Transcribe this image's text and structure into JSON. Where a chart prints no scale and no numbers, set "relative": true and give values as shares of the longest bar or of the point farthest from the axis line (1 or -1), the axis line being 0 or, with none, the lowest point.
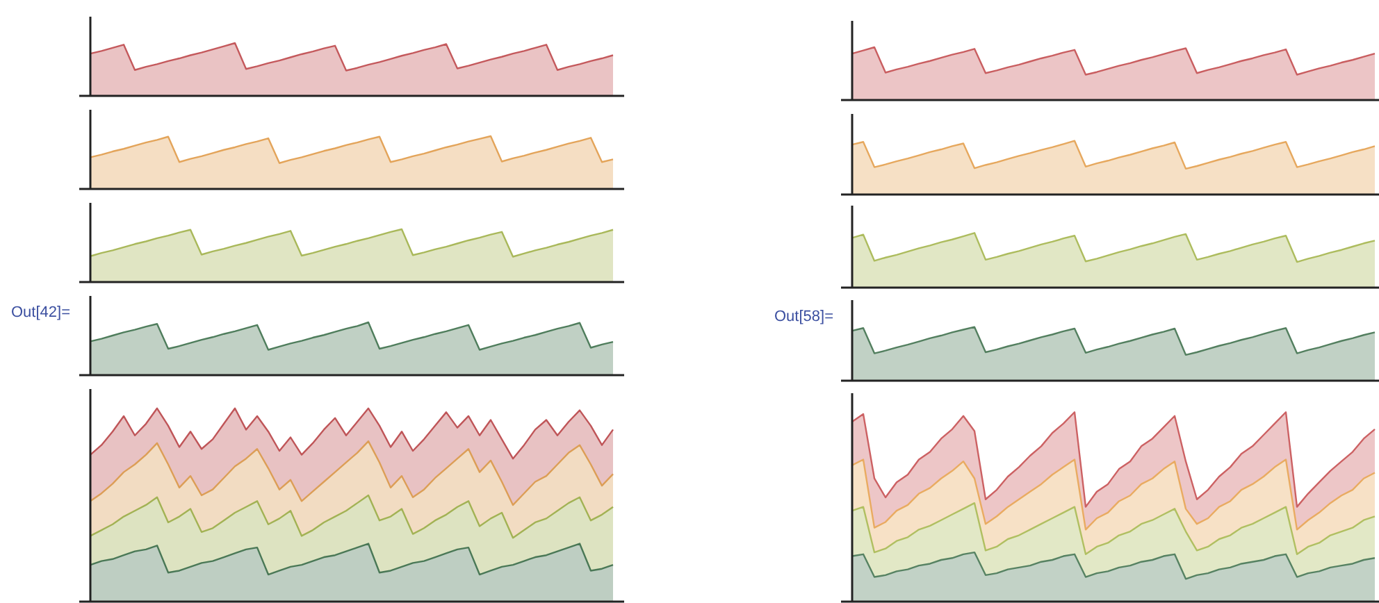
{
  "chart_data": [
    {
      "type": "area",
      "relative": true,
      "categories": [
        null,
        null,
        null,
        null,
        null,
        null,
        null,
        null,
        null,
        null,
        null,
        null,
        null,
        null,
        null,
        null,
        null,
        null,
        null,
        null,
        null,
        null,
        null,
        null,
        null,
        null,
        null,
        null,
        null,
        null,
        null,
        null,
        null,
        null,
        null,
        null,
        null,
        null,
        null,
        null,
        null,
        null,
        null,
        null,
        null,
        null,
        null,
        null
      ],
      "series": [
        {
          "color": "#c4595c",
          "values": [
            0.8,
            0.85,
            0.91,
            0.97,
            0.49,
            0.55,
            0.6,
            0.66,
            0.71,
            0.77,
            0.82,
            0.88,
            0.94,
            1.0,
            0.51,
            0.56,
            0.62,
            0.67,
            0.73,
            0.79,
            0.84,
            0.9,
            0.95,
            0.48,
            0.53,
            0.59,
            0.64,
            0.7,
            0.76,
            0.81,
            0.87,
            0.92,
            0.98,
            0.52,
            0.57,
            0.63,
            0.69,
            0.74,
            0.8,
            0.85,
            0.91,
            0.97,
            0.49,
            0.55,
            0.6,
            0.66,
            0.71,
            0.77
          ]
        }
      ]
    },
    {
      "type": "area",
      "relative": true,
      "categories": [
        null,
        null,
        null,
        null,
        null,
        null,
        null,
        null,
        null,
        null,
        null,
        null,
        null,
        null,
        null,
        null,
        null,
        null,
        null,
        null,
        null,
        null,
        null,
        null,
        null,
        null,
        null,
        null,
        null,
        null,
        null,
        null,
        null,
        null,
        null,
        null,
        null,
        null,
        null,
        null,
        null,
        null,
        null,
        null,
        null,
        null,
        null,
        null
      ],
      "series": [
        {
          "color": "#e3a45a",
          "values": [
            0.6,
            0.65,
            0.71,
            0.76,
            0.82,
            0.88,
            0.93,
            0.99,
            0.51,
            0.57,
            0.62,
            0.68,
            0.74,
            0.79,
            0.85,
            0.9,
            0.96,
            0.49,
            0.55,
            0.6,
            0.66,
            0.72,
            0.77,
            0.83,
            0.88,
            0.94,
            0.99,
            0.51,
            0.56,
            0.62,
            0.67,
            0.73,
            0.79,
            0.84,
            0.9,
            0.95,
            1.0,
            0.52,
            0.58,
            0.63,
            0.69,
            0.74,
            0.8,
            0.86,
            0.91,
            0.97,
            0.51,
            0.56
          ]
        }
      ]
    },
    {
      "type": "area",
      "relative": true,
      "categories": [
        null,
        null,
        null,
        null,
        null,
        null,
        null,
        null,
        null,
        null,
        null,
        null,
        null,
        null,
        null,
        null,
        null,
        null,
        null,
        null,
        null,
        null,
        null,
        null,
        null,
        null,
        null,
        null,
        null,
        null,
        null,
        null,
        null,
        null,
        null,
        null,
        null,
        null,
        null,
        null,
        null,
        null,
        null,
        null,
        null,
        null,
        null,
        null
      ],
      "series": [
        {
          "color": "#a9b85a",
          "values": [
            0.49,
            0.55,
            0.6,
            0.66,
            0.72,
            0.77,
            0.83,
            0.88,
            0.94,
            0.99,
            0.52,
            0.58,
            0.63,
            0.69,
            0.74,
            0.8,
            0.86,
            0.91,
            0.97,
            0.5,
            0.55,
            0.61,
            0.67,
            0.72,
            0.78,
            0.83,
            0.89,
            0.95,
            1.0,
            0.51,
            0.56,
            0.62,
            0.67,
            0.73,
            0.79,
            0.84,
            0.9,
            0.95,
            0.48,
            0.54,
            0.6,
            0.65,
            0.71,
            0.76,
            0.82,
            0.88,
            0.93,
            0.99
          ]
        }
      ]
    },
    {
      "type": "area",
      "relative": true,
      "annotations": [
        "Out[42]="
      ],
      "categories": [
        null,
        null,
        null,
        null,
        null,
        null,
        null,
        null,
        null,
        null,
        null,
        null,
        null,
        null,
        null,
        null,
        null,
        null,
        null,
        null,
        null,
        null,
        null,
        null,
        null,
        null,
        null,
        null,
        null,
        null,
        null,
        null,
        null,
        null,
        null,
        null,
        null,
        null,
        null,
        null,
        null,
        null,
        null,
        null,
        null,
        null,
        null,
        null
      ],
      "series": [
        {
          "color": "#4f7d5c",
          "values": [
            0.64,
            0.69,
            0.75,
            0.81,
            0.86,
            0.92,
            0.97,
            0.5,
            0.55,
            0.61,
            0.67,
            0.72,
            0.78,
            0.83,
            0.89,
            0.95,
            0.48,
            0.54,
            0.6,
            0.65,
            0.71,
            0.76,
            0.82,
            0.88,
            0.93,
            1.0,
            0.5,
            0.55,
            0.61,
            0.67,
            0.72,
            0.78,
            0.83,
            0.89,
            0.95,
            0.48,
            0.54,
            0.6,
            0.65,
            0.71,
            0.76,
            0.82,
            0.88,
            0.93,
            0.99,
            0.52,
            0.58,
            0.63
          ]
        }
      ]
    },
    {
      "type": "area",
      "relative": true,
      "stacked": true,
      "categories": [
        null,
        null,
        null,
        null,
        null,
        null,
        null,
        null,
        null,
        null,
        null,
        null,
        null,
        null,
        null,
        null,
        null,
        null,
        null,
        null,
        null,
        null,
        null,
        null,
        null,
        null,
        null,
        null,
        null,
        null,
        null,
        null,
        null,
        null,
        null,
        null,
        null,
        null,
        null,
        null,
        null,
        null,
        null,
        null,
        null,
        null,
        null,
        null
      ],
      "series": [
        {
          "color": "#4a7856",
          "values": [
            0.19,
            0.21,
            0.22,
            0.24,
            0.26,
            0.27,
            0.29,
            0.15,
            0.16,
            0.18,
            0.2,
            0.21,
            0.23,
            0.25,
            0.27,
            0.28,
            0.14,
            0.16,
            0.18,
            0.19,
            0.21,
            0.23,
            0.24,
            0.26,
            0.28,
            0.3,
            0.15,
            0.16,
            0.18,
            0.2,
            0.21,
            0.23,
            0.25,
            0.27,
            0.28,
            0.14,
            0.16,
            0.18,
            0.19,
            0.21,
            0.23,
            0.24,
            0.26,
            0.28,
            0.3,
            0.16,
            0.17,
            0.19
          ]
        },
        {
          "color": "#a2b254",
          "values": [
            0.15,
            0.16,
            0.18,
            0.2,
            0.21,
            0.23,
            0.25,
            0.26,
            0.28,
            0.3,
            0.16,
            0.17,
            0.19,
            0.21,
            0.22,
            0.24,
            0.26,
            0.27,
            0.29,
            0.15,
            0.16,
            0.18,
            0.2,
            0.21,
            0.23,
            0.25,
            0.27,
            0.28,
            0.3,
            0.15,
            0.17,
            0.19,
            0.2,
            0.22,
            0.24,
            0.25,
            0.27,
            0.28,
            0.14,
            0.16,
            0.18,
            0.19,
            0.21,
            0.23,
            0.24,
            0.26,
            0.28,
            0.3
          ]
        },
        {
          "color": "#dc9e56",
          "values": [
            0.18,
            0.19,
            0.21,
            0.23,
            0.24,
            0.26,
            0.28,
            0.3,
            0.15,
            0.17,
            0.19,
            0.2,
            0.22,
            0.24,
            0.25,
            0.27,
            0.29,
            0.15,
            0.16,
            0.18,
            0.2,
            0.21,
            0.23,
            0.25,
            0.26,
            0.28,
            0.3,
            0.15,
            0.17,
            0.19,
            0.2,
            0.22,
            0.24,
            0.25,
            0.27,
            0.28,
            0.3,
            0.16,
            0.17,
            0.19,
            0.21,
            0.22,
            0.24,
            0.26,
            0.27,
            0.29,
            0.15,
            0.17
          ]
        },
        {
          "color": "#bf5558",
          "values": [
            0.24,
            0.25,
            0.27,
            0.29,
            0.15,
            0.16,
            0.18,
            0.2,
            0.21,
            0.23,
            0.24,
            0.26,
            0.28,
            0.3,
            0.15,
            0.17,
            0.19,
            0.2,
            0.22,
            0.24,
            0.25,
            0.27,
            0.28,
            0.14,
            0.16,
            0.17,
            0.19,
            0.21,
            0.23,
            0.24,
            0.26,
            0.27,
            0.29,
            0.16,
            0.17,
            0.19,
            0.21,
            0.22,
            0.24,
            0.25,
            0.27,
            0.29,
            0.15,
            0.16,
            0.18,
            0.2,
            0.21,
            0.23
          ]
        }
      ]
    },
    {
      "type": "area",
      "relative": true,
      "categories": [
        null,
        null,
        null,
        null,
        null,
        null,
        null,
        null,
        null,
        null,
        null,
        null,
        null,
        null,
        null,
        null,
        null,
        null,
        null,
        null,
        null,
        null,
        null,
        null,
        null,
        null,
        null,
        null,
        null,
        null,
        null,
        null,
        null,
        null,
        null,
        null,
        null,
        null,
        null,
        null,
        null,
        null,
        null,
        null,
        null,
        null,
        null,
        null
      ],
      "series": [
        {
          "color": "#c95e60",
          "values": [
            0.88,
            0.94,
            1.0,
            0.52,
            0.58,
            0.63,
            0.69,
            0.74,
            0.8,
            0.86,
            0.91,
            0.97,
            0.51,
            0.56,
            0.62,
            0.67,
            0.73,
            0.79,
            0.84,
            0.9,
            0.95,
            0.48,
            0.53,
            0.59,
            0.65,
            0.7,
            0.76,
            0.81,
            0.87,
            0.93,
            0.98,
            0.51,
            0.57,
            0.62,
            0.68,
            0.74,
            0.79,
            0.85,
            0.9,
            0.96,
            0.48,
            0.54,
            0.6,
            0.65,
            0.71,
            0.76,
            0.82,
            0.88
          ]
        }
      ]
    },
    {
      "type": "area",
      "relative": true,
      "categories": [
        null,
        null,
        null,
        null,
        null,
        null,
        null,
        null,
        null,
        null,
        null,
        null,
        null,
        null,
        null,
        null,
        null,
        null,
        null,
        null,
        null,
        null,
        null,
        null,
        null,
        null,
        null,
        null,
        null,
        null,
        null,
        null,
        null,
        null,
        null,
        null,
        null,
        null,
        null,
        null,
        null,
        null,
        null,
        null,
        null,
        null,
        null,
        null
      ],
      "series": [
        {
          "color": "#e6a85e",
          "values": [
            0.93,
            0.98,
            0.51,
            0.56,
            0.62,
            0.67,
            0.73,
            0.79,
            0.84,
            0.9,
            0.95,
            0.49,
            0.55,
            0.6,
            0.66,
            0.72,
            0.77,
            0.83,
            0.88,
            0.94,
            1.0,
            0.52,
            0.58,
            0.63,
            0.69,
            0.74,
            0.8,
            0.86,
            0.91,
            0.97,
            0.48,
            0.53,
            0.59,
            0.65,
            0.7,
            0.76,
            0.81,
            0.87,
            0.93,
            0.98,
            0.51,
            0.56,
            0.62,
            0.67,
            0.73,
            0.79,
            0.84,
            0.9
          ]
        }
      ]
    },
    {
      "type": "area",
      "relative": true,
      "categories": [
        null,
        null,
        null,
        null,
        null,
        null,
        null,
        null,
        null,
        null,
        null,
        null,
        null,
        null,
        null,
        null,
        null,
        null,
        null,
        null,
        null,
        null,
        null,
        null,
        null,
        null,
        null,
        null,
        null,
        null,
        null,
        null,
        null,
        null,
        null,
        null,
        null,
        null,
        null,
        null,
        null,
        null,
        null,
        null,
        null,
        null,
        null,
        null
      ],
      "series": [
        {
          "color": "#adbc5e",
          "values": [
            0.91,
            0.97,
            0.49,
            0.55,
            0.6,
            0.66,
            0.72,
            0.77,
            0.83,
            0.88,
            0.94,
            1.0,
            0.51,
            0.56,
            0.62,
            0.67,
            0.73,
            0.79,
            0.84,
            0.9,
            0.95,
            0.48,
            0.53,
            0.59,
            0.65,
            0.7,
            0.76,
            0.81,
            0.87,
            0.93,
            0.98,
            0.51,
            0.56,
            0.62,
            0.67,
            0.73,
            0.79,
            0.84,
            0.9,
            0.95,
            0.47,
            0.53,
            0.58,
            0.64,
            0.69,
            0.75,
            0.81,
            0.86
          ]
        }
      ]
    },
    {
      "type": "area",
      "relative": true,
      "annotations": [
        "Out[58]="
      ],
      "categories": [
        null,
        null,
        null,
        null,
        null,
        null,
        null,
        null,
        null,
        null,
        null,
        null,
        null,
        null,
        null,
        null,
        null,
        null,
        null,
        null,
        null,
        null,
        null,
        null,
        null,
        null,
        null,
        null,
        null,
        null,
        null,
        null,
        null,
        null,
        null,
        null,
        null,
        null,
        null,
        null,
        null,
        null,
        null,
        null,
        null,
        null,
        null,
        null
      ],
      "series": [
        {
          "color": "#537f5f",
          "values": [
            0.93,
            0.98,
            0.51,
            0.56,
            0.62,
            0.67,
            0.73,
            0.79,
            0.84,
            0.9,
            0.95,
            1.0,
            0.53,
            0.58,
            0.64,
            0.69,
            0.75,
            0.81,
            0.86,
            0.92,
            0.97,
            0.52,
            0.58,
            0.63,
            0.69,
            0.74,
            0.8,
            0.86,
            0.91,
            0.97,
            0.48,
            0.53,
            0.59,
            0.65,
            0.7,
            0.76,
            0.81,
            0.87,
            0.93,
            0.98,
            0.51,
            0.57,
            0.62,
            0.68,
            0.74,
            0.79,
            0.85,
            0.9
          ]
        }
      ]
    },
    {
      "type": "area",
      "relative": true,
      "stacked": true,
      "categories": [
        null,
        null,
        null,
        null,
        null,
        null,
        null,
        null,
        null,
        null,
        null,
        null,
        null,
        null,
        null,
        null,
        null,
        null,
        null,
        null,
        null,
        null,
        null,
        null,
        null,
        null,
        null,
        null,
        null,
        null,
        null,
        null,
        null,
        null,
        null,
        null,
        null,
        null,
        null,
        null,
        null,
        null,
        null,
        null,
        null,
        null,
        null,
        null
      ],
      "series": [
        {
          "color": "#568262",
          "values": [
            0.24,
            0.25,
            0.13,
            0.14,
            0.16,
            0.17,
            0.19,
            0.2,
            0.22,
            0.23,
            0.25,
            0.26,
            0.14,
            0.15,
            0.17,
            0.18,
            0.19,
            0.21,
            0.22,
            0.24,
            0.25,
            0.13,
            0.15,
            0.16,
            0.18,
            0.19,
            0.21,
            0.22,
            0.24,
            0.25,
            0.12,
            0.14,
            0.15,
            0.17,
            0.18,
            0.2,
            0.21,
            0.22,
            0.24,
            0.25,
            0.13,
            0.15,
            0.16,
            0.18,
            0.19,
            0.2,
            0.22,
            0.23
          ]
        },
        {
          "color": "#b0bf61",
          "values": [
            0.24,
            0.25,
            0.13,
            0.14,
            0.16,
            0.17,
            0.19,
            0.2,
            0.21,
            0.23,
            0.24,
            0.26,
            0.13,
            0.14,
            0.16,
            0.17,
            0.19,
            0.2,
            0.22,
            0.23,
            0.25,
            0.12,
            0.14,
            0.15,
            0.17,
            0.18,
            0.2,
            0.21,
            0.22,
            0.24,
            0.25,
            0.13,
            0.14,
            0.16,
            0.17,
            0.19,
            0.2,
            0.22,
            0.23,
            0.25,
            0.12,
            0.14,
            0.15,
            0.17,
            0.18,
            0.19,
            0.21,
            0.22
          ]
        },
        {
          "color": "#e9ab61",
          "values": [
            0.24,
            0.25,
            0.13,
            0.14,
            0.16,
            0.17,
            0.19,
            0.2,
            0.22,
            0.23,
            0.25,
            0.13,
            0.14,
            0.16,
            0.17,
            0.19,
            0.2,
            0.21,
            0.23,
            0.24,
            0.25,
            0.13,
            0.15,
            0.16,
            0.18,
            0.19,
            0.21,
            0.22,
            0.24,
            0.25,
            0.12,
            0.14,
            0.15,
            0.17,
            0.18,
            0.2,
            0.21,
            0.22,
            0.24,
            0.25,
            0.13,
            0.14,
            0.16,
            0.17,
            0.19,
            0.2,
            0.22,
            0.23
          ]
        },
        {
          "color": "#cc6163",
          "values": [
            0.23,
            0.24,
            0.26,
            0.13,
            0.15,
            0.16,
            0.18,
            0.19,
            0.21,
            0.22,
            0.24,
            0.25,
            0.13,
            0.14,
            0.16,
            0.17,
            0.19,
            0.2,
            0.22,
            0.23,
            0.25,
            0.12,
            0.14,
            0.15,
            0.17,
            0.18,
            0.2,
            0.21,
            0.22,
            0.24,
            0.25,
            0.13,
            0.15,
            0.16,
            0.18,
            0.19,
            0.2,
            0.22,
            0.23,
            0.25,
            0.12,
            0.14,
            0.16,
            0.17,
            0.18,
            0.2,
            0.21,
            0.23
          ]
        }
      ]
    }
  ]
}
